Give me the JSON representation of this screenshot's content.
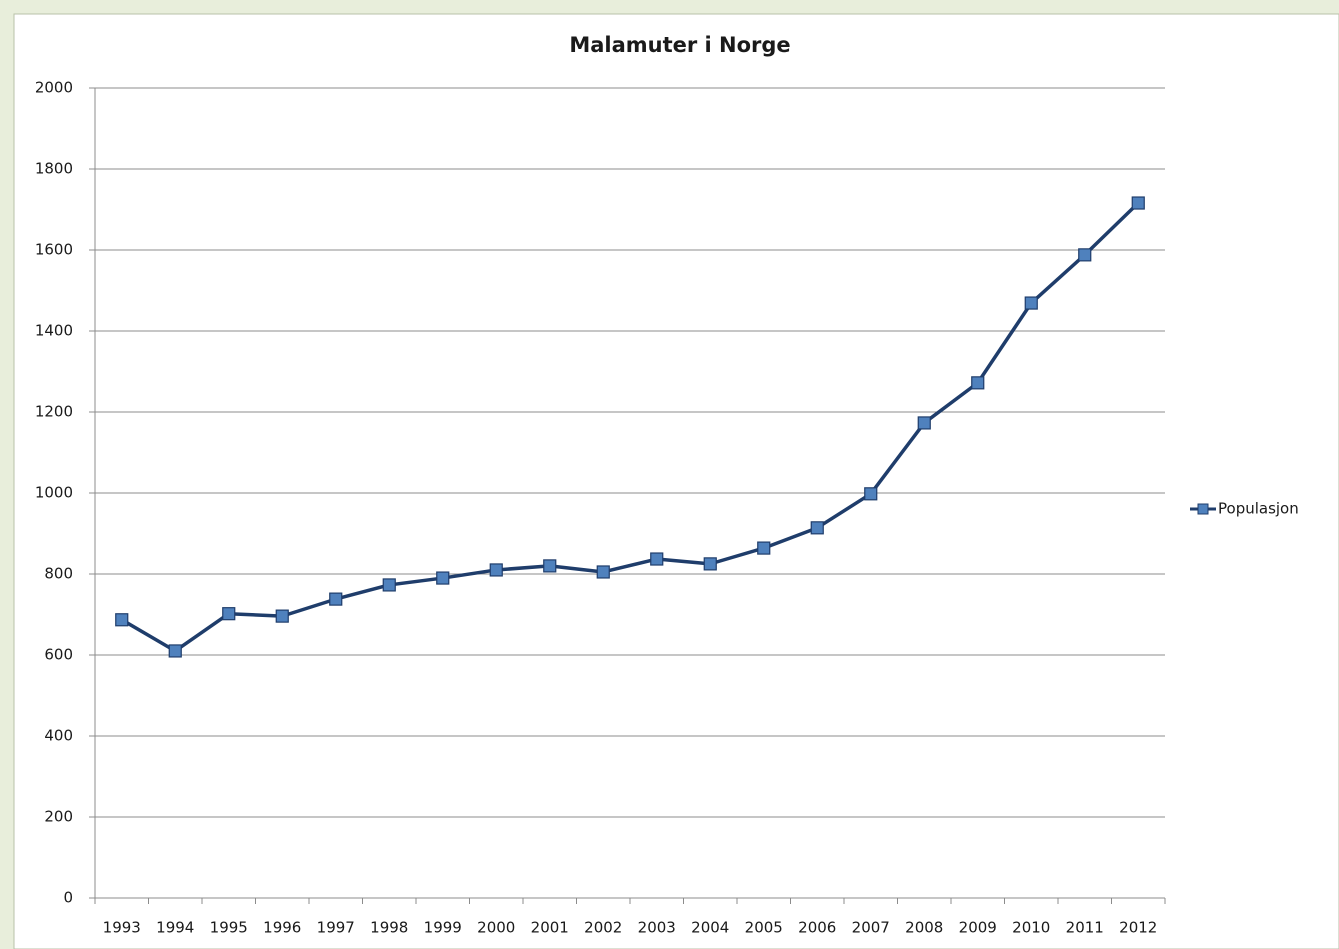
{
  "chart_data": {
    "type": "line",
    "title": "Malamuter i Norge",
    "categories": [
      "1993",
      "1994",
      "1995",
      "1996",
      "1997",
      "1998",
      "1999",
      "2000",
      "2001",
      "2002",
      "2003",
      "2004",
      "2005",
      "2006",
      "2007",
      "2008",
      "2009",
      "2010",
      "2011",
      "2012"
    ],
    "series": [
      {
        "name": "Populasjon",
        "color": "#1f3d6b",
        "marker_color": "#4f81bd",
        "values": [
          687,
          610,
          702,
          696,
          738,
          773,
          790,
          810,
          820,
          805,
          837,
          825,
          864,
          914,
          998,
          1173,
          1272,
          1469,
          1588,
          1716
        ]
      }
    ],
    "ylim": [
      0,
      2000
    ],
    "yticks": [
      0,
      200,
      400,
      600,
      800,
      1000,
      1200,
      1400,
      1600,
      1800,
      2000
    ],
    "grid": true,
    "legend": "right"
  }
}
